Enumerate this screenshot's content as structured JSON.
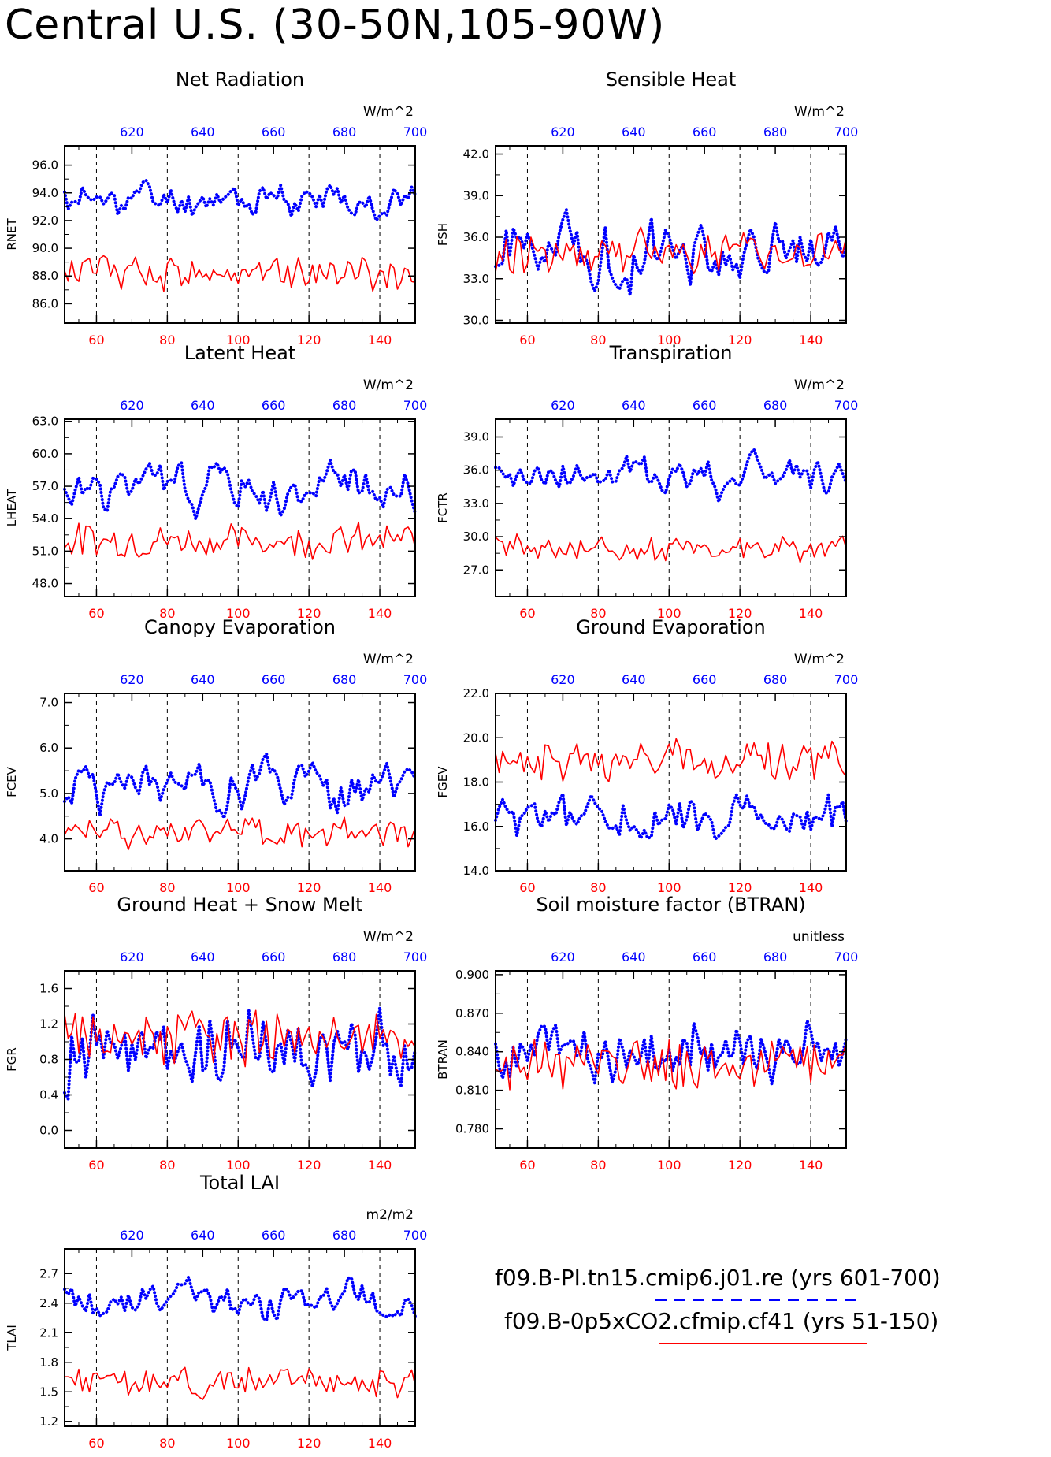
{
  "page_title": "Central U.S. (30-50N,105-90W)",
  "legend": {
    "case1": "f09.B-PI.tn15.cmip6.j01.re",
    "case1_years": "(yrs 601-700)",
    "case1_color": "#0000ff",
    "case1_style": "dashed",
    "case2": "f09.B-0p5xCO2.cfmip.cf41",
    "case2_years": "(yrs 51-150)",
    "case2_color": "#ff0000",
    "case2_style": "solid"
  },
  "colors": {
    "red_axis": "#ff0000",
    "blue_axis": "#0000ff"
  },
  "chart_data": [
    {
      "type": "line",
      "title": "Net Radiation",
      "ylabel": "RNET",
      "units": "W/m^2",
      "ylim": [
        84.6,
        97.4
      ],
      "yticks": [
        86.0,
        88.0,
        90.0,
        92.0,
        94.0,
        96.0
      ],
      "ytick_labels": [
        "86.0",
        "88.0",
        "90.0",
        "92.0",
        "94.0",
        "96.0"
      ],
      "xlim_bottom": [
        51,
        150
      ],
      "xticks_bottom": [
        60,
        80,
        100,
        120,
        140
      ],
      "xlim_top": [
        601,
        700
      ],
      "xticks_top": [
        620,
        640,
        660,
        680,
        700
      ],
      "series": [
        {
          "color": "#0000ff",
          "style": "dotted",
          "start": 601,
          "base": 93.5,
          "amp": 1.6,
          "seed": 11,
          "smooth": 0.55
        },
        {
          "color": "#ff0000",
          "style": "solid",
          "start": 51,
          "base": 88.3,
          "amp": 1.3,
          "seed": 12,
          "smooth": 0.1
        }
      ]
    },
    {
      "type": "line",
      "title": "Sensible Heat",
      "ylabel": "FSH",
      "units": "W/m^2",
      "ylim": [
        29.8,
        42.6
      ],
      "yticks": [
        30.0,
        33.0,
        36.0,
        39.0,
        42.0
      ],
      "ytick_labels": [
        "30.0",
        "33.0",
        "36.0",
        "39.0",
        "42.0"
      ],
      "xlim_bottom": [
        51,
        150
      ],
      "xticks_bottom": [
        60,
        80,
        100,
        120,
        140
      ],
      "xlim_top": [
        601,
        700
      ],
      "xticks_top": [
        620,
        640,
        660,
        680,
        700
      ],
      "series": [
        {
          "color": "#0000ff",
          "style": "dotted",
          "start": 601,
          "base": 35.0,
          "amp": 2.6,
          "seed": 21,
          "smooth": 0.5
        },
        {
          "color": "#ff0000",
          "style": "solid",
          "start": 51,
          "base": 35.0,
          "amp": 1.6,
          "seed": 22,
          "smooth": 0.1
        }
      ]
    },
    {
      "type": "line",
      "title": "Latent Heat",
      "ylabel": "LHEAT",
      "units": "W/m^2",
      "ylim": [
        46.8,
        63.2
      ],
      "yticks": [
        48.0,
        51.0,
        54.0,
        57.0,
        60.0,
        63.0
      ],
      "ytick_labels": [
        "48.0",
        "51.0",
        "54.0",
        "57.0",
        "60.0",
        "63.0"
      ],
      "xlim_bottom": [
        51,
        150
      ],
      "xticks_bottom": [
        60,
        80,
        100,
        120,
        140
      ],
      "xlim_top": [
        601,
        700
      ],
      "xticks_top": [
        620,
        640,
        660,
        680,
        700
      ],
      "series": [
        {
          "color": "#0000ff",
          "style": "dotted",
          "start": 601,
          "base": 56.8,
          "amp": 2.7,
          "seed": 31,
          "smooth": 0.6
        },
        {
          "color": "#ff0000",
          "style": "solid",
          "start": 51,
          "base": 52.0,
          "amp": 1.6,
          "seed": 32,
          "smooth": 0.1
        }
      ]
    },
    {
      "type": "line",
      "title": "Transpiration",
      "ylabel": "FCTR",
      "units": "W/m^2",
      "ylim": [
        24.6,
        40.6
      ],
      "yticks": [
        27.0,
        30.0,
        33.0,
        36.0,
        39.0
      ],
      "ytick_labels": [
        "27.0",
        "30.0",
        "33.0",
        "36.0",
        "39.0"
      ],
      "xlim_bottom": [
        51,
        150
      ],
      "xticks_bottom": [
        60,
        80,
        100,
        120,
        140
      ],
      "xlim_top": [
        601,
        700
      ],
      "xticks_top": [
        620,
        640,
        660,
        680,
        700
      ],
      "series": [
        {
          "color": "#0000ff",
          "style": "dotted",
          "start": 601,
          "base": 35.4,
          "amp": 2.4,
          "seed": 41,
          "smooth": 0.6
        },
        {
          "color": "#ff0000",
          "style": "solid",
          "start": 51,
          "base": 28.9,
          "amp": 1.3,
          "seed": 42,
          "smooth": 0.15
        }
      ]
    },
    {
      "type": "line",
      "title": "Canopy Evaporation",
      "ylabel": "FCEV",
      "units": "W/m^2",
      "ylim": [
        3.3,
        7.2
      ],
      "yticks": [
        4.0,
        5.0,
        6.0,
        7.0
      ],
      "ytick_labels": [
        "4.0",
        "5.0",
        "6.0",
        "7.0"
      ],
      "xlim_bottom": [
        51,
        150
      ],
      "xticks_bottom": [
        60,
        80,
        100,
        120,
        140
      ],
      "xlim_top": [
        601,
        700
      ],
      "xticks_top": [
        620,
        640,
        660,
        680,
        700
      ],
      "series": [
        {
          "color": "#0000ff",
          "style": "dotted",
          "start": 601,
          "base": 5.1,
          "amp": 0.7,
          "seed": 51,
          "smooth": 0.6
        },
        {
          "color": "#ff0000",
          "style": "solid",
          "start": 51,
          "base": 4.15,
          "amp": 0.35,
          "seed": 52,
          "smooth": 0.1
        }
      ]
    },
    {
      "type": "line",
      "title": "Ground Evaporation",
      "ylabel": "FGEV",
      "units": "W/m^2",
      "ylim": [
        14.0,
        22.0
      ],
      "yticks": [
        14.0,
        16.0,
        18.0,
        20.0,
        22.0
      ],
      "ytick_labels": [
        "14.0",
        "16.0",
        "18.0",
        "20.0",
        "22.0"
      ],
      "xlim_bottom": [
        51,
        150
      ],
      "xticks_bottom": [
        60,
        80,
        100,
        120,
        140
      ],
      "xlim_top": [
        601,
        700
      ],
      "xticks_top": [
        620,
        640,
        660,
        680,
        700
      ],
      "series": [
        {
          "color": "#0000ff",
          "style": "dotted",
          "start": 601,
          "base": 16.3,
          "amp": 1.1,
          "seed": 61,
          "smooth": 0.3
        },
        {
          "color": "#ff0000",
          "style": "solid",
          "start": 51,
          "base": 19.0,
          "amp": 0.9,
          "seed": 62,
          "smooth": 0.1
        }
      ]
    },
    {
      "type": "line",
      "title": "Ground Heat + Snow Melt",
      "ylabel": "FGR",
      "units": "W/m^2",
      "ylim": [
        -0.2,
        1.8
      ],
      "yticks": [
        0.0,
        0.4,
        0.8,
        1.2,
        1.6
      ],
      "ytick_labels": [
        "0.0",
        "0.4",
        "0.8",
        "1.2",
        "1.6"
      ],
      "xlim_bottom": [
        51,
        150
      ],
      "xticks_bottom": [
        60,
        80,
        100,
        120,
        140
      ],
      "xlim_top": [
        601,
        700
      ],
      "xticks_top": [
        620,
        640,
        660,
        680,
        700
      ],
      "series": [
        {
          "color": "#0000ff",
          "style": "dotted",
          "start": 601,
          "base": 0.9,
          "amp": 0.45,
          "seed": 71,
          "smooth": 0.05
        },
        {
          "color": "#ff0000",
          "style": "solid",
          "start": 51,
          "base": 1.05,
          "amp": 0.3,
          "seed": 72,
          "smooth": 0.05
        }
      ]
    },
    {
      "type": "line",
      "title": "Soil moisture factor (BTRAN)",
      "ylabel": "BTRAN",
      "units": "unitless",
      "ylim": [
        0.765,
        0.903
      ],
      "yticks": [
        0.78,
        0.81,
        0.84,
        0.87,
        0.9
      ],
      "ytick_labels": [
        "0.780",
        "0.810",
        "0.840",
        "0.870",
        "0.900"
      ],
      "xlim_bottom": [
        51,
        150
      ],
      "xticks_bottom": [
        60,
        80,
        100,
        120,
        140
      ],
      "xlim_top": [
        601,
        700
      ],
      "xticks_top": [
        620,
        640,
        660,
        680,
        700
      ],
      "series": [
        {
          "color": "#0000ff",
          "style": "dotted",
          "start": 601,
          "base": 0.84,
          "amp": 0.028,
          "seed": 81,
          "smooth": 0.3
        },
        {
          "color": "#ff0000",
          "style": "solid",
          "start": 51,
          "base": 0.83,
          "amp": 0.02,
          "seed": 82,
          "smooth": 0.1
        }
      ]
    },
    {
      "type": "line",
      "title": "Total LAI",
      "ylabel": "TLAI",
      "units": "m2/m2",
      "ylim": [
        1.15,
        2.95
      ],
      "yticks": [
        1.2,
        1.5,
        1.8,
        2.1,
        2.4,
        2.7
      ],
      "ytick_labels": [
        "1.2",
        "1.5",
        "1.8",
        "2.1",
        "2.4",
        "2.7"
      ],
      "xlim_bottom": [
        51,
        150
      ],
      "xticks_bottom": [
        60,
        80,
        100,
        120,
        140
      ],
      "xlim_top": [
        601,
        700
      ],
      "xticks_top": [
        620,
        640,
        660,
        680,
        700
      ],
      "series": [
        {
          "color": "#0000ff",
          "style": "dotted",
          "start": 601,
          "base": 2.4,
          "amp": 0.25,
          "seed": 91,
          "smooth": 0.6
        },
        {
          "color": "#ff0000",
          "style": "solid",
          "start": 51,
          "base": 1.6,
          "amp": 0.15,
          "seed": 92,
          "smooth": 0.1
        }
      ]
    }
  ]
}
